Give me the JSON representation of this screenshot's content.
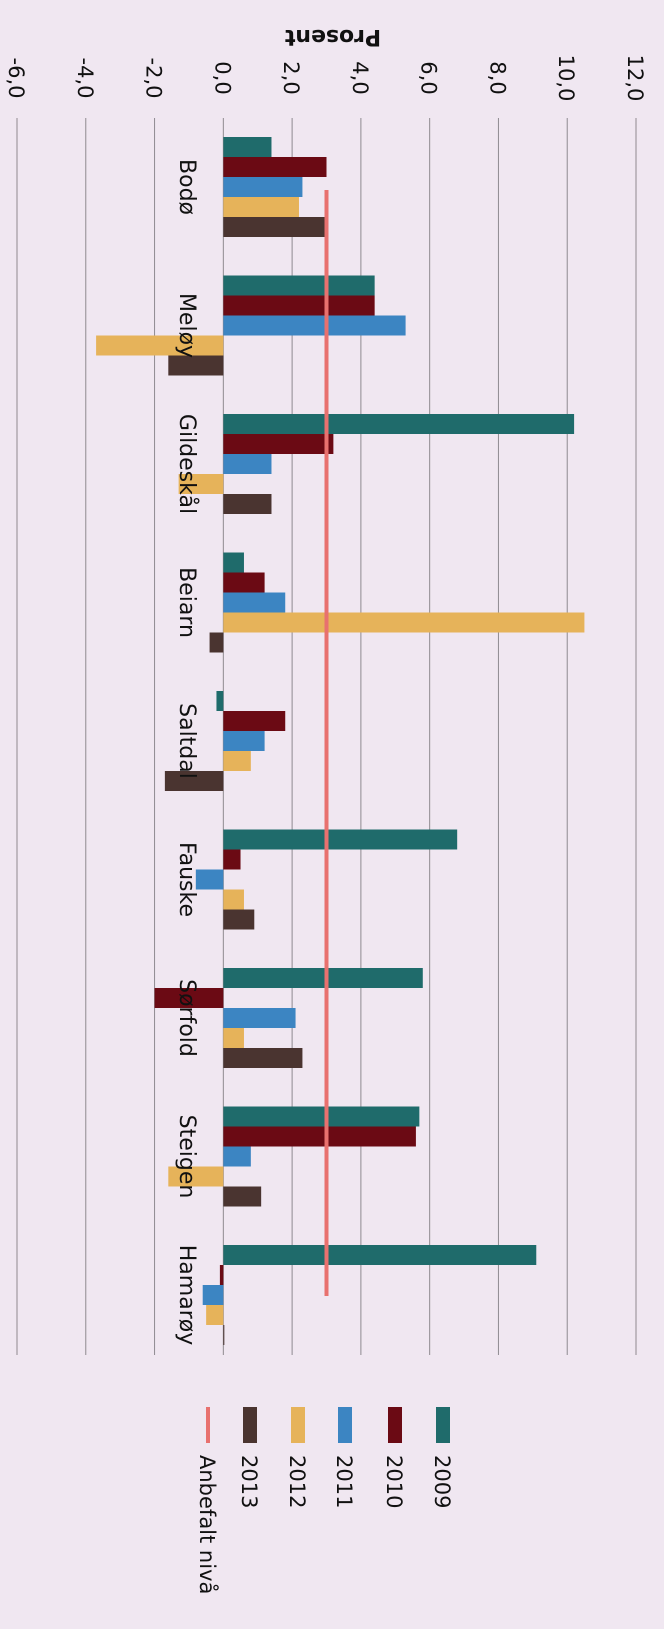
{
  "chart_data": {
    "type": "bar",
    "orientation": "horizontal-rotated-90",
    "title": "Prosent",
    "ylim": [
      -6,
      12
    ],
    "ytick_labels": [
      "-6,0",
      "-4,0",
      "-2,0",
      "0,0",
      "2,0",
      "4,0",
      "6,0",
      "8,0",
      "10,0",
      "12,0"
    ],
    "ytick_values": [
      -6,
      -4,
      -2,
      0,
      2,
      4,
      6,
      8,
      10,
      12
    ],
    "grid": true,
    "legend_placement": "bottom",
    "categories": [
      "Bodø",
      "Meløy",
      "Gildeskål",
      "Beiarn",
      "Saltdal",
      "Fauske",
      "Sørfold",
      "Steigen",
      "Hamarøy"
    ],
    "series": [
      {
        "name": "2009",
        "color": "#1f6b6b",
        "values": [
          1.4,
          4.4,
          10.2,
          0.6,
          -0.2,
          6.8,
          5.8,
          5.7,
          9.1
        ]
      },
      {
        "name": "2010",
        "color": "#6b0a14",
        "values": [
          3.0,
          4.4,
          3.2,
          1.2,
          1.8,
          0.5,
          -2.0,
          5.6,
          -0.1
        ]
      },
      {
        "name": "2011",
        "color": "#3c85c2",
        "values": [
          2.3,
          5.3,
          1.4,
          1.8,
          1.2,
          -0.8,
          2.1,
          0.8,
          -0.6
        ]
      },
      {
        "name": "2012",
        "color": "#e6b35a",
        "values": [
          2.2,
          -3.7,
          -1.3,
          10.5,
          0.8,
          0.6,
          0.6,
          -1.6,
          -0.5
        ]
      },
      {
        "name": "2013",
        "color": "#4a3430",
        "values": [
          3.0,
          -1.6,
          1.4,
          -0.4,
          -1.7,
          0.9,
          2.3,
          1.1,
          0.0
        ]
      }
    ],
    "reference_line": {
      "name": "Anbefalt nivå",
      "value": 3.0,
      "color": "#e8716f"
    }
  }
}
